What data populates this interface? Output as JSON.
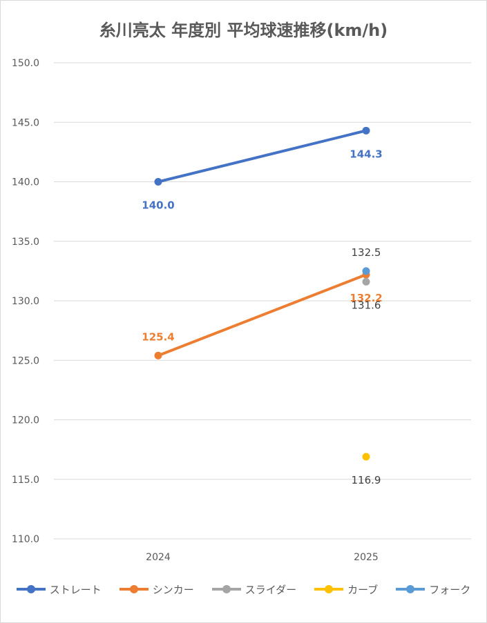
{
  "chart_data": {
    "type": "line",
    "title": "糸川亮太 年度別 平均球速推移(km/h)",
    "categories": [
      "2024",
      "2025"
    ],
    "ylim": [
      110,
      150
    ],
    "yticks": [
      "110.0",
      "115.0",
      "120.0",
      "125.0",
      "130.0",
      "135.0",
      "140.0",
      "145.0",
      "150.0"
    ],
    "grid": true,
    "legend_position": "bottom",
    "series": [
      {
        "name": "ストレート",
        "color": "#4472c4",
        "values": [
          140.0,
          144.3
        ],
        "labels": [
          "140.0",
          "144.3"
        ],
        "label_pos": [
          "below",
          "below"
        ]
      },
      {
        "name": "シンカー",
        "color": "#ed7d31",
        "values": [
          125.4,
          132.2
        ],
        "labels": [
          "125.4",
          "132.2"
        ],
        "label_pos": [
          "above",
          "below"
        ]
      },
      {
        "name": "スライダー",
        "color": "#a5a5a5",
        "values": [
          null,
          131.6
        ],
        "labels": [
          null,
          "131.6"
        ],
        "label_pos": [
          null,
          "below"
        ]
      },
      {
        "name": "カーブ",
        "color": "#ffc000",
        "values": [
          null,
          116.9
        ],
        "labels": [
          null,
          "116.9"
        ],
        "label_pos": [
          null,
          "below"
        ]
      },
      {
        "name": "フォーク",
        "color": "#5b9bd5",
        "values": [
          null,
          132.5
        ],
        "labels": [
          null,
          "132.5"
        ],
        "label_pos": [
          null,
          "above"
        ]
      }
    ]
  }
}
